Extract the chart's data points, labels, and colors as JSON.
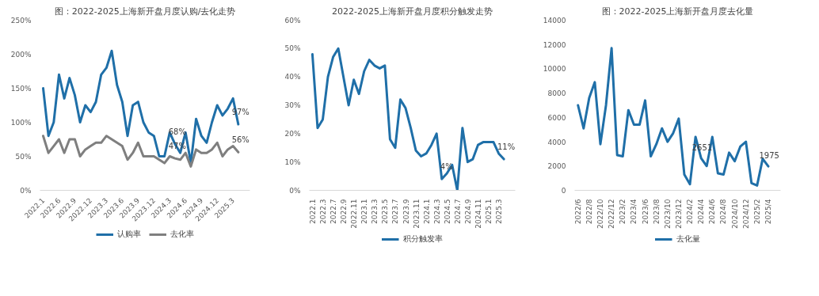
{
  "chart_data": [
    {
      "type": "line",
      "title": "图：2022-2025上海新开盘月度认购/去化走势",
      "categories": [
        "2022.1",
        null,
        null,
        "2022.6",
        null,
        null,
        "2022.9",
        null,
        null,
        "2022.12",
        null,
        null,
        "2023.3",
        null,
        null,
        "2023.6",
        null,
        null,
        "2023.9",
        null,
        null,
        "2023.12",
        null,
        null,
        "2024.3",
        null,
        null,
        "2024.6",
        null,
        null,
        "2024.9",
        null,
        null,
        "2024.12",
        null,
        null,
        "2025.3",
        null
      ],
      "series": [
        {
          "name": "认购率",
          "color": "#1f6fa8",
          "values": [
            150,
            80,
            100,
            170,
            135,
            165,
            140,
            100,
            125,
            115,
            130,
            170,
            180,
            205,
            155,
            130,
            80,
            125,
            130,
            100,
            85,
            80,
            50,
            50,
            85,
            68,
            55,
            85,
            40,
            105,
            80,
            70,
            100,
            125,
            110,
            120,
            135,
            97
          ],
          "value_labels": [
            null,
            null,
            null,
            null,
            null,
            null,
            null,
            null,
            null,
            null,
            null,
            null,
            null,
            null,
            null,
            null,
            null,
            null,
            null,
            null,
            null,
            null,
            null,
            null,
            null,
            "68%",
            null,
            null,
            null,
            null,
            null,
            null,
            null,
            null,
            null,
            null,
            null,
            "97%"
          ]
        },
        {
          "name": "去化率",
          "color": "#7f7f7f",
          "values": [
            80,
            55,
            65,
            75,
            55,
            75,
            75,
            50,
            60,
            65,
            70,
            70,
            80,
            75,
            70,
            65,
            45,
            55,
            70,
            50,
            50,
            50,
            45,
            40,
            50,
            47,
            45,
            55,
            35,
            60,
            55,
            55,
            60,
            70,
            50,
            60,
            65,
            56
          ],
          "value_labels": [
            null,
            null,
            null,
            null,
            null,
            null,
            null,
            null,
            null,
            null,
            null,
            null,
            null,
            null,
            null,
            null,
            null,
            null,
            null,
            null,
            null,
            null,
            null,
            null,
            null,
            "47%",
            null,
            null,
            null,
            null,
            null,
            null,
            null,
            null,
            null,
            null,
            null,
            "56%"
          ]
        }
      ],
      "ylim": [
        0,
        250
      ],
      "yticks": [
        {
          "value": 0,
          "label": "0%"
        },
        {
          "value": 50,
          "label": "50%"
        },
        {
          "value": 100,
          "label": "100%"
        },
        {
          "value": 150,
          "label": "150%"
        },
        {
          "value": 200,
          "label": "200%"
        },
        {
          "value": 250,
          "label": "250%"
        }
      ],
      "grid": false,
      "legend": "bottom"
    },
    {
      "type": "line",
      "title": "2022-2025上海新开盘月度积分触发走势",
      "categories": [
        "2022.1",
        null,
        "2022.3",
        null,
        "2022.7",
        null,
        "2022.9",
        null,
        "2022.11",
        null,
        "2023.1",
        null,
        "2023.3",
        null,
        "2023.5",
        null,
        "2023.7",
        null,
        "2023.9",
        null,
        "2023.11",
        null,
        "2024.1",
        null,
        "2024.3",
        null,
        "2024.5",
        null,
        "2024.7",
        null,
        "2024.9",
        null,
        "2024.11",
        null,
        "2025.1",
        null,
        "2025.3",
        null
      ],
      "series": [
        {
          "name": "积分触发率",
          "color": "#1f6fa8",
          "values": [
            48,
            22,
            25,
            40,
            47,
            50,
            40,
            30,
            39,
            34,
            42,
            46,
            44,
            43,
            44,
            18,
            15,
            32,
            29,
            22,
            14,
            12,
            13,
            16,
            20,
            4,
            6,
            9,
            0,
            22,
            10,
            11,
            16,
            17,
            17,
            17,
            13,
            11
          ],
          "value_labels": [
            null,
            null,
            null,
            null,
            null,
            null,
            null,
            null,
            null,
            null,
            null,
            null,
            null,
            null,
            null,
            null,
            null,
            null,
            null,
            null,
            null,
            null,
            null,
            null,
            null,
            "4%",
            null,
            null,
            null,
            null,
            null,
            null,
            null,
            null,
            null,
            null,
            null,
            "11%"
          ]
        }
      ],
      "ylim": [
        0,
        60
      ],
      "yticks": [
        {
          "value": 0,
          "label": "0%"
        },
        {
          "value": 10,
          "label": "10%"
        },
        {
          "value": 20,
          "label": "20%"
        },
        {
          "value": 30,
          "label": "30%"
        },
        {
          "value": 40,
          "label": "40%"
        },
        {
          "value": 50,
          "label": "50%"
        },
        {
          "value": 60,
          "label": "60%"
        }
      ],
      "grid": false,
      "legend": "bottom"
    },
    {
      "type": "line",
      "title": "图：2022-2025上海新开盘月度去化量",
      "categories": [
        "2022/6",
        null,
        "2022/8",
        null,
        "2022/10",
        null,
        "2022/12",
        null,
        "2023/2",
        null,
        "2023/4",
        null,
        "2023/6",
        null,
        "2023/8",
        null,
        "2023/10",
        null,
        "2023/12",
        null,
        "2024/2",
        null,
        "2024/4",
        null,
        "2024/6",
        null,
        "2024/8",
        null,
        "2024/10",
        null,
        "2024/12",
        null,
        "2025/2",
        null,
        "2025/4"
      ],
      "series": [
        {
          "name": "去化量",
          "color": "#1f6fa8",
          "values": [
            7000,
            5100,
            7600,
            8900,
            3800,
            7000,
            11700,
            2900,
            2800,
            6600,
            5400,
            5400,
            7400,
            2800,
            3800,
            5100,
            4000,
            4700,
            5900,
            1300,
            500,
            4400,
            2651,
            2000,
            4400,
            1400,
            1300,
            3100,
            2400,
            3600,
            4000,
            600,
            400,
            2600,
            1975
          ],
          "value_labels": [
            null,
            null,
            null,
            null,
            null,
            null,
            null,
            null,
            null,
            null,
            null,
            null,
            null,
            null,
            null,
            null,
            null,
            null,
            null,
            null,
            null,
            null,
            "2651",
            null,
            null,
            null,
            null,
            null,
            null,
            null,
            null,
            null,
            null,
            null,
            "1975"
          ]
        }
      ],
      "ylim": [
        0,
        14000
      ],
      "yticks": [
        0,
        2000,
        4000,
        6000,
        8000,
        10000,
        12000,
        14000
      ],
      "grid": false,
      "legend": "bottom"
    }
  ]
}
